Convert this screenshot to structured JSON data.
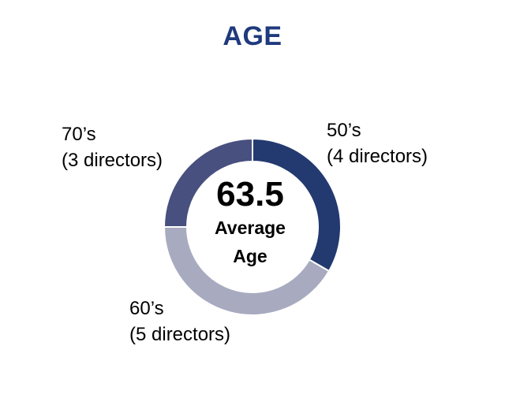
{
  "title": "AGE",
  "colors": {
    "title": "#1f3a7d",
    "fifties": "#233a70",
    "sixties": "#a8aac0",
    "seventies": "#47507e"
  },
  "chart_data": {
    "type": "pie",
    "title": "AGE",
    "donut": true,
    "center_value": "63.5",
    "center_label": "Average Age",
    "categories": [
      "50’s",
      "60’s",
      "70’s"
    ],
    "values": [
      4,
      5,
      3
    ],
    "slice_labels": [
      {
        "category": "50’s",
        "detail": "(4 directors)"
      },
      {
        "category": "60’s",
        "detail": "(5 directors)"
      },
      {
        "category": "70’s",
        "detail": "(3 directors)"
      }
    ]
  }
}
